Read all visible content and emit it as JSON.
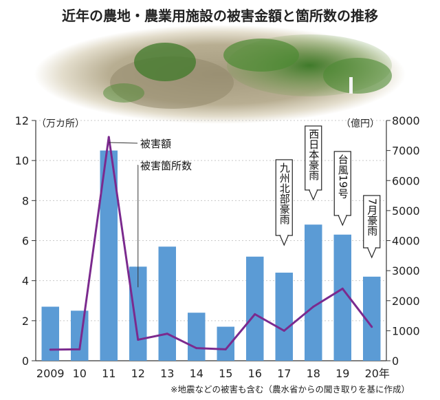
{
  "chart_data": {
    "type": "bar",
    "title": "近年の農地・農業用施設の被害金額と箇所数の推移",
    "categories": [
      "2009",
      "10",
      "11",
      "12",
      "13",
      "14",
      "15",
      "16",
      "17",
      "18",
      "19",
      "20年"
    ],
    "series": [
      {
        "name": "被害箇所数",
        "type": "bar",
        "axis": "left",
        "color": "#5b9bd5",
        "values": [
          2.7,
          2.5,
          10.5,
          4.7,
          5.7,
          2.4,
          1.7,
          5.2,
          4.4,
          6.8,
          6.3,
          4.2
        ]
      },
      {
        "name": "被害額",
        "type": "line",
        "axis": "right",
        "color": "#7b2a8e",
        "values": [
          370,
          380,
          7450,
          700,
          900,
          420,
          380,
          1550,
          1000,
          1800,
          2400,
          1130
        ]
      }
    ],
    "y_left": {
      "unit": "（万カ所）",
      "ticks": [
        "0",
        "2",
        "4",
        "6",
        "8",
        "10",
        "12"
      ],
      "ylim": [
        0,
        12
      ]
    },
    "y_right": {
      "unit": "（億円）",
      "ticks": [
        "0",
        "1000",
        "2000",
        "3000",
        "4000",
        "5000",
        "6000",
        "7000",
        "8000"
      ],
      "ylim": [
        0,
        8000
      ]
    },
    "annotations": [
      {
        "category": "17",
        "text": "九州北部豪雨"
      },
      {
        "category": "18",
        "text": "西日本豪雨"
      },
      {
        "category": "19",
        "text": "台風19号"
      },
      {
        "category": "20年",
        "text": "7月豪雨"
      }
    ],
    "note": "※地震などの被害も含む（農水省からの聞き取りを基に作成）",
    "photo": "farmland-landslide-photo"
  }
}
